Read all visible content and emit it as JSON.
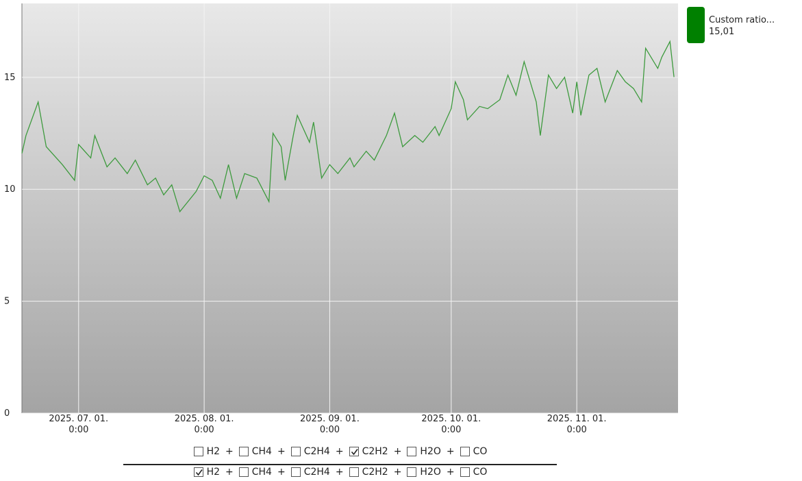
{
  "chart_data": {
    "type": "line",
    "x": [
      "2025-06-17",
      "2025-06-18",
      "2025-06-21",
      "2025-06-23",
      "2025-06-27",
      "2025-06-30",
      "2025-07-01",
      "2025-07-04",
      "2025-07-05",
      "2025-07-08",
      "2025-07-10",
      "2025-07-13",
      "2025-07-15",
      "2025-07-18",
      "2025-07-20",
      "2025-07-22",
      "2025-07-24",
      "2025-07-26",
      "2025-07-30",
      "2025-08-01",
      "2025-08-03",
      "2025-08-05",
      "2025-08-07",
      "2025-08-09",
      "2025-08-11",
      "2025-08-14",
      "2025-08-17",
      "2025-08-18",
      "2025-08-20",
      "2025-08-21",
      "2025-08-23",
      "2025-08-24",
      "2025-08-27",
      "2025-08-28",
      "2025-08-30",
      "2025-09-01",
      "2025-09-03",
      "2025-09-06",
      "2025-09-07",
      "2025-09-10",
      "2025-09-12",
      "2025-09-15",
      "2025-09-17",
      "2025-09-19",
      "2025-09-22",
      "2025-09-24",
      "2025-09-27",
      "2025-09-28",
      "2025-10-01",
      "2025-10-02",
      "2025-10-04",
      "2025-10-05",
      "2025-10-08",
      "2025-10-10",
      "2025-10-13",
      "2025-10-15",
      "2025-10-17",
      "2025-10-19",
      "2025-10-20",
      "2025-10-22",
      "2025-10-23",
      "2025-10-25",
      "2025-10-27",
      "2025-10-29",
      "2025-10-31",
      "2025-11-01",
      "2025-11-02",
      "2025-11-04",
      "2025-11-06",
      "2025-11-08",
      "2025-11-11",
      "2025-11-13",
      "2025-11-15",
      "2025-11-17",
      "2025-11-18",
      "2025-11-21",
      "2025-11-22",
      "2025-11-24",
      "2025-11-25"
    ],
    "series": [
      {
        "name": "Custom ratio...",
        "color": "#3d9a3d",
        "legend_color": "#008000",
        "current": {
          "value": 15.01,
          "label": "15,01"
        },
        "values": [
          11.6,
          12.4,
          13.9,
          11.9,
          11.1,
          10.4,
          12.0,
          11.4,
          12.4,
          11.0,
          11.4,
          10.7,
          11.3,
          10.2,
          10.5,
          9.75,
          10.2,
          9.0,
          9.9,
          10.6,
          10.4,
          9.6,
          11.1,
          9.6,
          10.7,
          10.5,
          9.45,
          12.5,
          11.9,
          10.4,
          12.4,
          13.3,
          12.1,
          13.0,
          10.5,
          11.1,
          10.7,
          11.4,
          11.0,
          11.7,
          11.3,
          12.4,
          13.4,
          11.9,
          12.4,
          12.1,
          12.8,
          12.4,
          13.6,
          14.8,
          14.0,
          13.1,
          13.7,
          13.6,
          14.0,
          15.1,
          14.2,
          15.7,
          15.1,
          13.9,
          12.4,
          15.1,
          14.5,
          15.0,
          13.4,
          14.8,
          13.3,
          15.1,
          15.4,
          13.9,
          15.3,
          14.8,
          14.5,
          13.9,
          16.3,
          15.4,
          15.9,
          16.6,
          15.01
        ]
      }
    ],
    "xlim": [
      "2025-06-17",
      "2025-11-26"
    ],
    "xticks": [
      {
        "value": "2025-07-01",
        "label": "2025. 07. 01.\n0:00"
      },
      {
        "value": "2025-08-01",
        "label": "2025. 08. 01.\n0:00"
      },
      {
        "value": "2025-09-01",
        "label": "2025. 09. 01.\n0:00"
      },
      {
        "value": "2025-10-01",
        "label": "2025. 10. 01.\n0:00"
      },
      {
        "value": "2025-11-01",
        "label": "2025. 11. 01.\n0:00"
      }
    ],
    "ylim": [
      0,
      18.3
    ],
    "yticks": [
      0,
      5,
      10,
      15
    ],
    "grid": true
  },
  "formula": {
    "operator": "+",
    "numerator": [
      {
        "label": "H2",
        "checked": false
      },
      {
        "label": "CH4",
        "checked": false
      },
      {
        "label": "C2H4",
        "checked": false
      },
      {
        "label": "C2H2",
        "checked": true
      },
      {
        "label": "H2O",
        "checked": false
      },
      {
        "label": "CO",
        "checked": false
      }
    ],
    "denominator": [
      {
        "label": "H2",
        "checked": true
      },
      {
        "label": "CH4",
        "checked": false
      },
      {
        "label": "C2H4",
        "checked": false
      },
      {
        "label": "C2H2",
        "checked": false
      },
      {
        "label": "H2O",
        "checked": false
      },
      {
        "label": "CO",
        "checked": false
      }
    ]
  }
}
